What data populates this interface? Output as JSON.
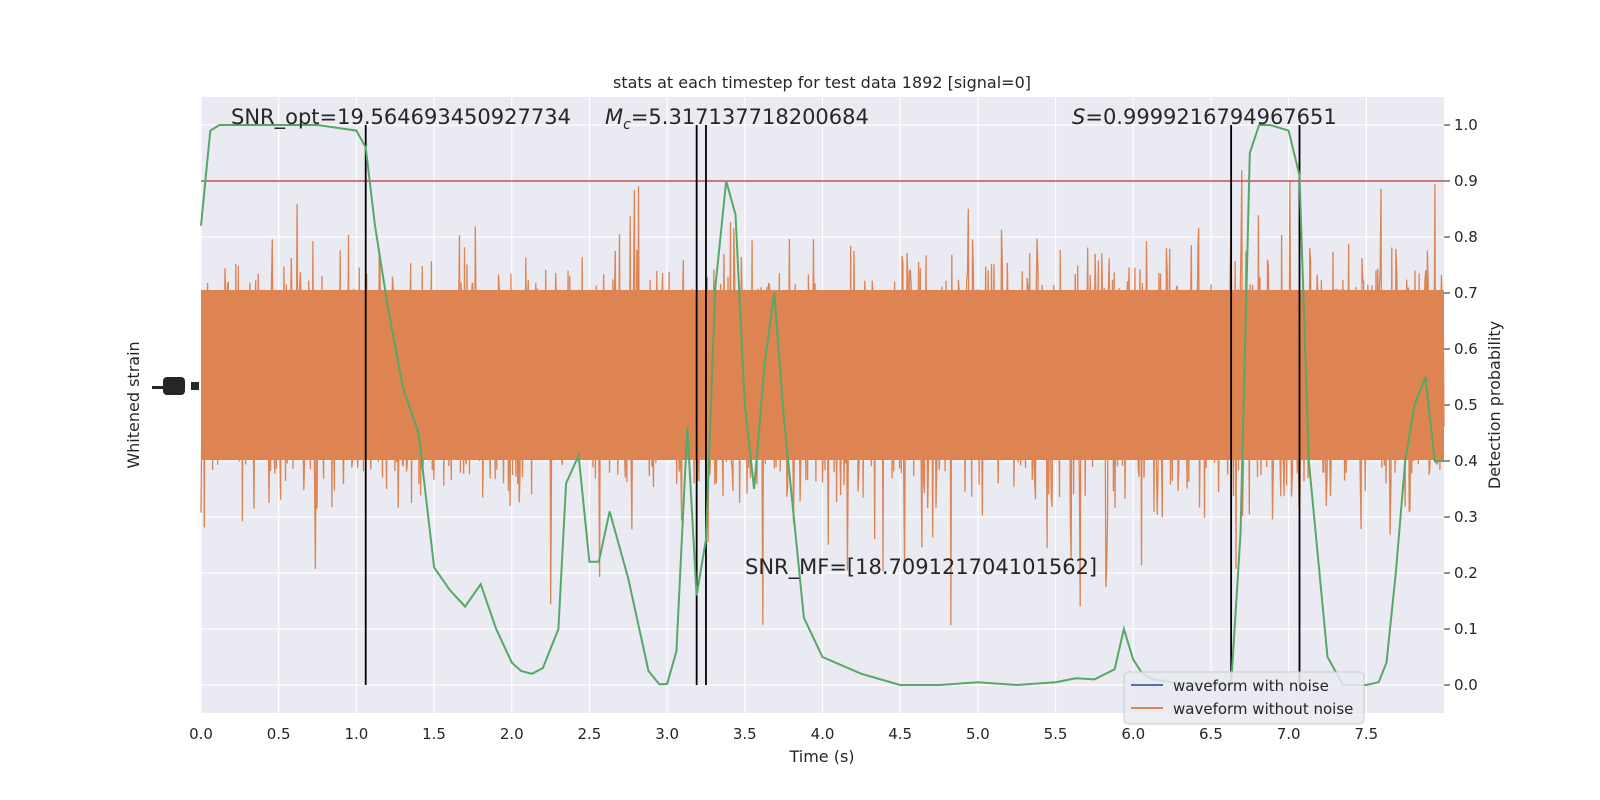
{
  "chart_data": {
    "type": "line",
    "title": "stats at each timestep for test data 1892 [signal=0]",
    "xlabel": "Time (s)",
    "ylabel_left": "Whitened strain",
    "ylabel_right": "Detection probability",
    "xlim": [
      0.0,
      8.0
    ],
    "ylim_right": [
      -0.05,
      1.05
    ],
    "x_ticks": [
      "0.0",
      "0.5",
      "1.0",
      "1.5",
      "2.0",
      "2.5",
      "3.0",
      "3.5",
      "4.0",
      "4.5",
      "5.0",
      "5.5",
      "6.0",
      "6.5",
      "7.0",
      "7.5"
    ],
    "y_ticks_right": [
      "0.0",
      "0.1",
      "0.2",
      "0.3",
      "0.4",
      "0.5",
      "0.6",
      "0.7",
      "0.8",
      "0.9",
      "1.0"
    ],
    "grid": true,
    "legend_position": "bottom-right",
    "threshold": 0.9,
    "annotations": {
      "snr_opt": "SNR_opt=19.564693450927734",
      "mc_prefix": "M",
      "mc_subscript": "c",
      "mc_value": "=5.317137718200684",
      "s_prefix": "S",
      "s_value": "=0.9999216794967651",
      "snr_mf": "SNR_MF=[18.709121704101562]"
    },
    "vertical_markers": [
      1.06,
      3.19,
      3.25,
      6.63,
      7.07
    ],
    "series": [
      {
        "name": "waveform with noise",
        "color": "#4c72b0"
      },
      {
        "name": "waveform without noise",
        "color": "#dd8452"
      },
      {
        "color": "#55a868",
        "x": [
          0.0,
          0.06,
          0.12,
          0.25,
          0.5,
          0.75,
          1.0,
          1.06,
          1.12,
          1.2,
          1.3,
          1.4,
          1.5,
          1.6,
          1.7,
          1.8,
          1.9,
          2.0,
          2.06,
          2.13,
          2.2,
          2.3,
          2.35,
          2.43,
          2.5,
          2.56,
          2.63,
          2.75,
          2.88,
          2.95,
          3.0,
          3.06,
          3.13,
          3.19,
          3.25,
          3.31,
          3.38,
          3.44,
          3.5,
          3.56,
          3.63,
          3.69,
          3.75,
          3.88,
          4.0,
          4.25,
          4.5,
          4.75,
          5.0,
          5.25,
          5.5,
          5.63,
          5.75,
          5.88,
          5.94,
          6.0,
          6.06,
          6.13,
          6.25,
          6.4,
          6.55,
          6.63,
          6.69,
          6.75,
          6.81,
          6.88,
          7.0,
          7.07,
          7.13,
          7.25,
          7.35,
          7.5,
          7.58,
          7.63,
          7.69,
          7.75,
          7.81,
          7.88,
          7.94,
          8.0
        ],
        "y": [
          0.82,
          0.99,
          1.0,
          1.0,
          1.0,
          1.0,
          0.99,
          0.96,
          0.82,
          0.68,
          0.53,
          0.45,
          0.21,
          0.17,
          0.14,
          0.18,
          0.1,
          0.04,
          0.025,
          0.02,
          0.03,
          0.1,
          0.36,
          0.41,
          0.22,
          0.22,
          0.31,
          0.19,
          0.025,
          0.001,
          0.002,
          0.06,
          0.46,
          0.16,
          0.26,
          0.71,
          0.9,
          0.84,
          0.5,
          0.35,
          0.58,
          0.7,
          0.48,
          0.12,
          0.05,
          0.02,
          0.0,
          0.0,
          0.005,
          0.0,
          0.005,
          0.012,
          0.01,
          0.028,
          0.1,
          0.045,
          0.02,
          0.01,
          0.005,
          0.002,
          0.001,
          0.0,
          0.27,
          0.95,
          1.0,
          1.0,
          0.99,
          0.91,
          0.4,
          0.05,
          0.0,
          0.0,
          0.005,
          0.04,
          0.2,
          0.4,
          0.5,
          0.55,
          0.4,
          0.4
        ]
      }
    ]
  }
}
